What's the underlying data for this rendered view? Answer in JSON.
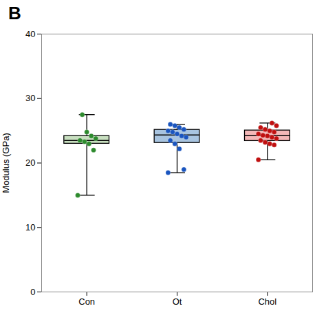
{
  "chart_data": {
    "type": "box",
    "title": "B",
    "ylabel": "Modulus (GPa)",
    "categories": [
      "Con",
      "Ot",
      "Chol"
    ],
    "values": [
      [
        15.0,
        22.0,
        23.0,
        23.3,
        23.5,
        23.8,
        24.2,
        24.8,
        27.5
      ],
      [
        18.5,
        19.0,
        22.2,
        23.0,
        23.5,
        24.0,
        24.2,
        24.5,
        24.8,
        25.0,
        25.2,
        25.5,
        25.8,
        26.0
      ],
      [
        20.5,
        22.8,
        23.0,
        23.2,
        23.5,
        23.8,
        24.0,
        24.2,
        24.3,
        24.5,
        24.8,
        25.0,
        25.2,
        25.5,
        25.8,
        26.2
      ]
    ],
    "q1": [
      23.0,
      23.125,
      23.425
    ],
    "median": [
      23.5,
      24.35,
      24.25
    ],
    "q3": [
      24.2,
      25.15,
      25.05
    ],
    "whisker_low": [
      15.0,
      18.5,
      20.5
    ],
    "whisker_high": [
      27.5,
      26.0,
      26.2
    ],
    "colors": [
      "#2d8a2d",
      "#1a55bf",
      "#c01010"
    ],
    "box_colors": [
      "#c8dfc0",
      "#a8c4e0",
      "#f4b8b8"
    ],
    "ylim": [
      0,
      40
    ],
    "yticks": [
      0,
      10,
      20,
      30,
      40
    ],
    "grid": false
  }
}
